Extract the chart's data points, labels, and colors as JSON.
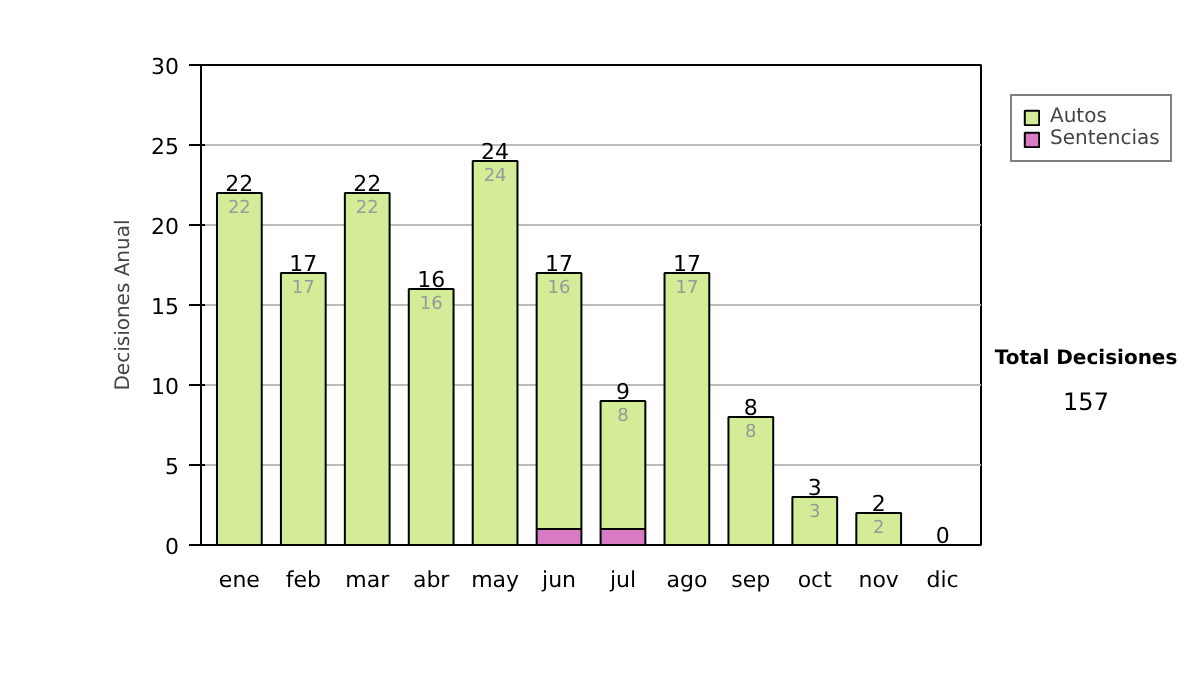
{
  "chart_data": {
    "type": "bar",
    "stacked": true,
    "ylabel": "Decisiones Anual",
    "categories": [
      "ene",
      "feb",
      "mar",
      "abr",
      "may",
      "jun",
      "jul",
      "ago",
      "sep",
      "oct",
      "nov",
      "dic"
    ],
    "series": [
      {
        "name": "Sentencias",
        "color": "#d97bc4",
        "values": [
          0,
          0,
          0,
          0,
          0,
          1,
          1,
          0,
          0,
          0,
          0,
          0
        ],
        "value_labels": [
          null,
          null,
          null,
          null,
          null,
          null,
          null,
          null,
          null,
          null,
          null,
          null
        ]
      },
      {
        "name": "Autos",
        "color": "#d4eb98",
        "values": [
          22,
          17,
          22,
          16,
          24,
          16,
          8,
          17,
          8,
          3,
          2,
          0
        ],
        "value_labels": [
          "22",
          "17",
          "22",
          "16",
          "24",
          "16",
          "8",
          "17",
          "8",
          "3",
          "2",
          null
        ]
      }
    ],
    "totals": [
      "22",
      "17",
      "22",
      "16",
      "24",
      "17",
      "9",
      "17",
      "8",
      "3",
      "2",
      "0"
    ],
    "ylim": [
      0,
      30
    ],
    "yticks": [
      0,
      5,
      10,
      15,
      20,
      25,
      30
    ],
    "grid": "y",
    "legend": "right",
    "annotations": [
      "Total Decisiones",
      "157"
    ]
  }
}
